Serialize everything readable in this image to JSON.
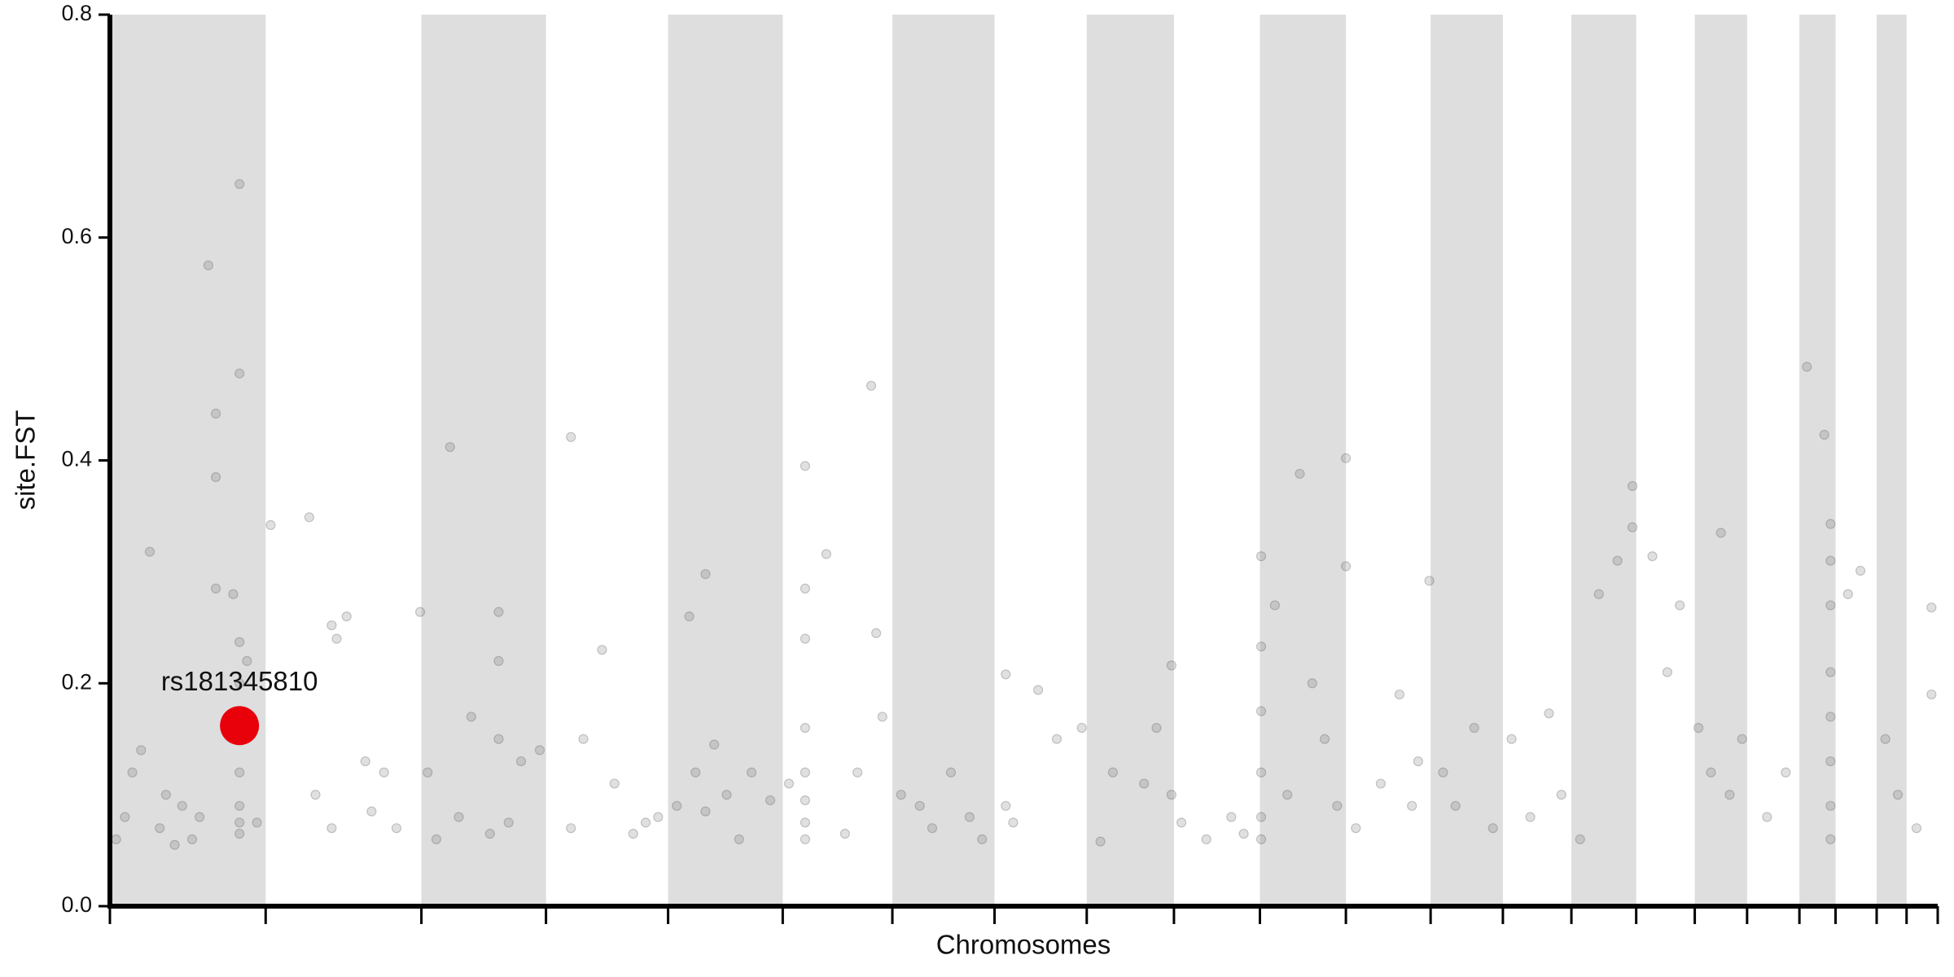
{
  "chart_data": {
    "type": "scatter",
    "x_label": "Chromosomes",
    "y_label": "site.FST",
    "xlim": [
      0,
      1467
    ],
    "ylim": [
      0,
      0.8
    ],
    "yticks": [
      {
        "value": 0,
        "label": "0.0"
      },
      0.2,
      0.4,
      0.6,
      0.8
    ],
    "xticks": [
      0,
      125,
      250,
      350,
      448,
      540,
      628,
      710,
      784,
      854,
      923,
      992,
      1060,
      1118,
      1173,
      1225,
      1272,
      1314,
      1356,
      1385,
      1418,
      1442,
      1467
    ],
    "alternating_bands": true,
    "band_color": "#dedede",
    "series": [
      {
        "color": "#555555",
        "x": [
          5,
          12,
          18,
          25,
          32,
          40,
          45,
          52,
          58,
          66,
          72,
          79,
          85,
          85,
          85,
          99,
          104,
          104,
          104,
          104,
          104,
          104,
          104,
          104,
          104,
          110,
          118,
          129,
          160,
          165,
          178,
          178,
          182,
          190,
          205,
          210,
          220,
          230,
          249,
          255,
          262,
          273,
          280,
          290,
          305,
          312,
          312,
          312,
          320,
          330,
          345,
          370,
          370,
          380,
          395,
          405,
          420,
          430,
          440,
          455,
          465,
          470,
          478,
          478,
          485,
          495,
          505,
          515,
          530,
          545,
          558,
          558,
          558,
          558,
          558,
          558,
          558,
          558,
          575,
          590,
          600,
          611,
          615,
          620,
          635,
          650,
          660,
          675,
          690,
          700,
          719,
          719,
          725,
          745,
          760,
          780,
          795,
          805,
          830,
          840,
          852,
          852,
          860,
          880,
          900,
          910,
          924,
          924,
          924,
          924,
          924,
          924,
          935,
          945,
          955,
          965,
          975,
          985,
          992,
          992,
          1000,
          1020,
          1035,
          1045,
          1050,
          1059,
          1070,
          1080,
          1095,
          1110,
          1125,
          1140,
          1155,
          1165,
          1180,
          1195,
          1210,
          1222,
          1222,
          1238,
          1250,
          1260,
          1275,
          1285,
          1293,
          1300,
          1310,
          1330,
          1345,
          1362,
          1376,
          1381,
          1381,
          1381,
          1381,
          1381,
          1381,
          1381,
          1381,
          1395,
          1405,
          1425,
          1435,
          1450,
          1462,
          1462
        ],
        "values": [
          0.06,
          0.08,
          0.12,
          0.14,
          0.318,
          0.07,
          0.1,
          0.055,
          0.09,
          0.06,
          0.08,
          0.575,
          0.442,
          0.385,
          0.285,
          0.28,
          0.648,
          0.478,
          0.237,
          0.2,
          0.16,
          0.12,
          0.09,
          0.075,
          0.065,
          0.22,
          0.075,
          0.342,
          0.349,
          0.1,
          0.252,
          0.07,
          0.24,
          0.26,
          0.13,
          0.085,
          0.12,
          0.07,
          0.264,
          0.12,
          0.06,
          0.412,
          0.08,
          0.17,
          0.065,
          0.264,
          0.22,
          0.15,
          0.075,
          0.13,
          0.14,
          0.421,
          0.07,
          0.15,
          0.23,
          0.11,
          0.065,
          0.075,
          0.08,
          0.09,
          0.26,
          0.12,
          0.298,
          0.085,
          0.145,
          0.1,
          0.06,
          0.12,
          0.095,
          0.11,
          0.395,
          0.285,
          0.24,
          0.16,
          0.12,
          0.095,
          0.075,
          0.06,
          0.316,
          0.065,
          0.12,
          0.467,
          0.245,
          0.17,
          0.1,
          0.09,
          0.07,
          0.12,
          0.08,
          0.06,
          0.208,
          0.09,
          0.075,
          0.194,
          0.15,
          0.16,
          0.058,
          0.12,
          0.11,
          0.16,
          0.216,
          0.1,
          0.075,
          0.06,
          0.08,
          0.065,
          0.314,
          0.233,
          0.175,
          0.12,
          0.08,
          0.06,
          0.27,
          0.1,
          0.388,
          0.2,
          0.15,
          0.09,
          0.402,
          0.305,
          0.07,
          0.11,
          0.19,
          0.09,
          0.13,
          0.292,
          0.12,
          0.09,
          0.16,
          0.07,
          0.15,
          0.08,
          0.173,
          0.1,
          0.06,
          0.28,
          0.31,
          0.377,
          0.34,
          0.314,
          0.21,
          0.27,
          0.16,
          0.12,
          0.335,
          0.1,
          0.15,
          0.08,
          0.12,
          0.484,
          0.423,
          0.343,
          0.31,
          0.27,
          0.21,
          0.17,
          0.13,
          0.09,
          0.06,
          0.28,
          0.301,
          0.15,
          0.1,
          0.07,
          0.268,
          0.19
        ]
      },
      {
        "name": "rs181345810",
        "color": "#e8000b",
        "highlight": true,
        "x": [
          104
        ],
        "values": [
          0.162
        ]
      }
    ]
  }
}
